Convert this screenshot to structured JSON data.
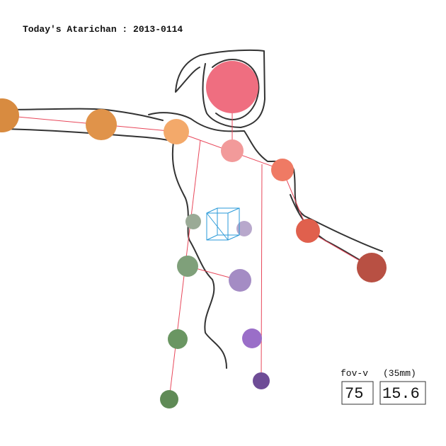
{
  "title": "Today's Atarichan : 2013-0114",
  "fov": {
    "label": "fov-v",
    "unit_label": "(35mm)",
    "fov_value": "75",
    "focal_value": "15.6"
  }
}
